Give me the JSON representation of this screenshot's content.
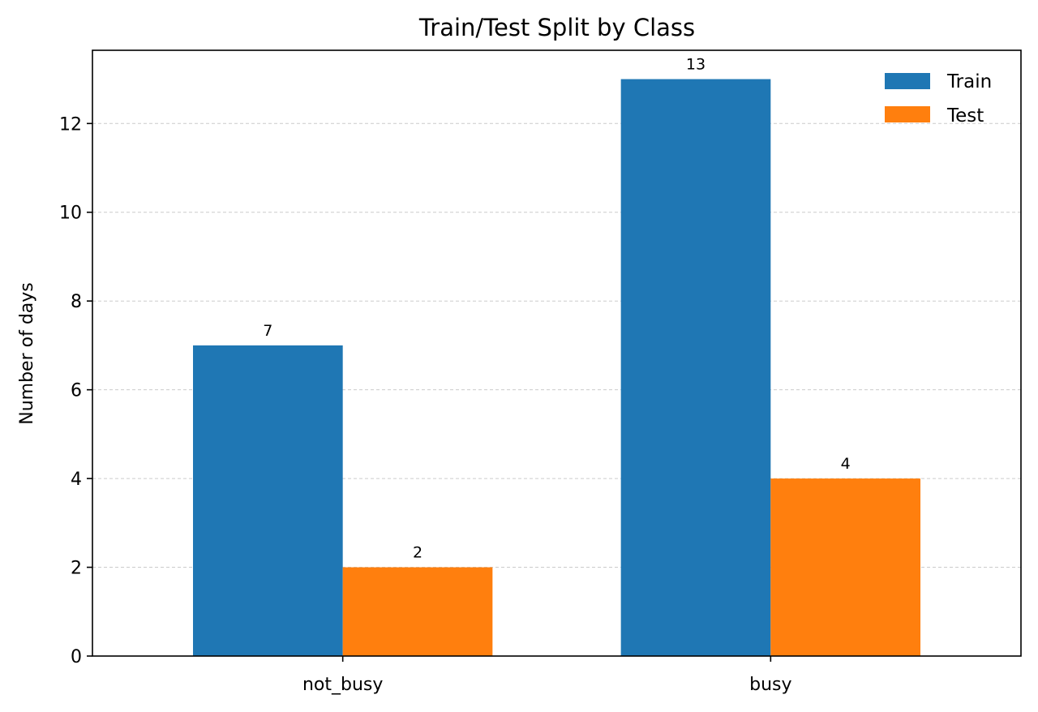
{
  "chart_data": {
    "type": "bar",
    "title": "Train/Test Split by Class",
    "xlabel": "",
    "ylabel": "Number of days",
    "categories": [
      "not_busy",
      "busy"
    ],
    "series": [
      {
        "name": "Train",
        "values": [
          7,
          13
        ],
        "color": "#1f77b4"
      },
      {
        "name": "Test",
        "values": [
          2,
          4
        ],
        "color": "#ff7f0e"
      }
    ],
    "ylim": [
      0,
      13.65
    ],
    "yticks": [
      0,
      2,
      4,
      6,
      8,
      10,
      12
    ],
    "grid": "y, dashed",
    "legend": "top-right",
    "data_labels": true
  }
}
